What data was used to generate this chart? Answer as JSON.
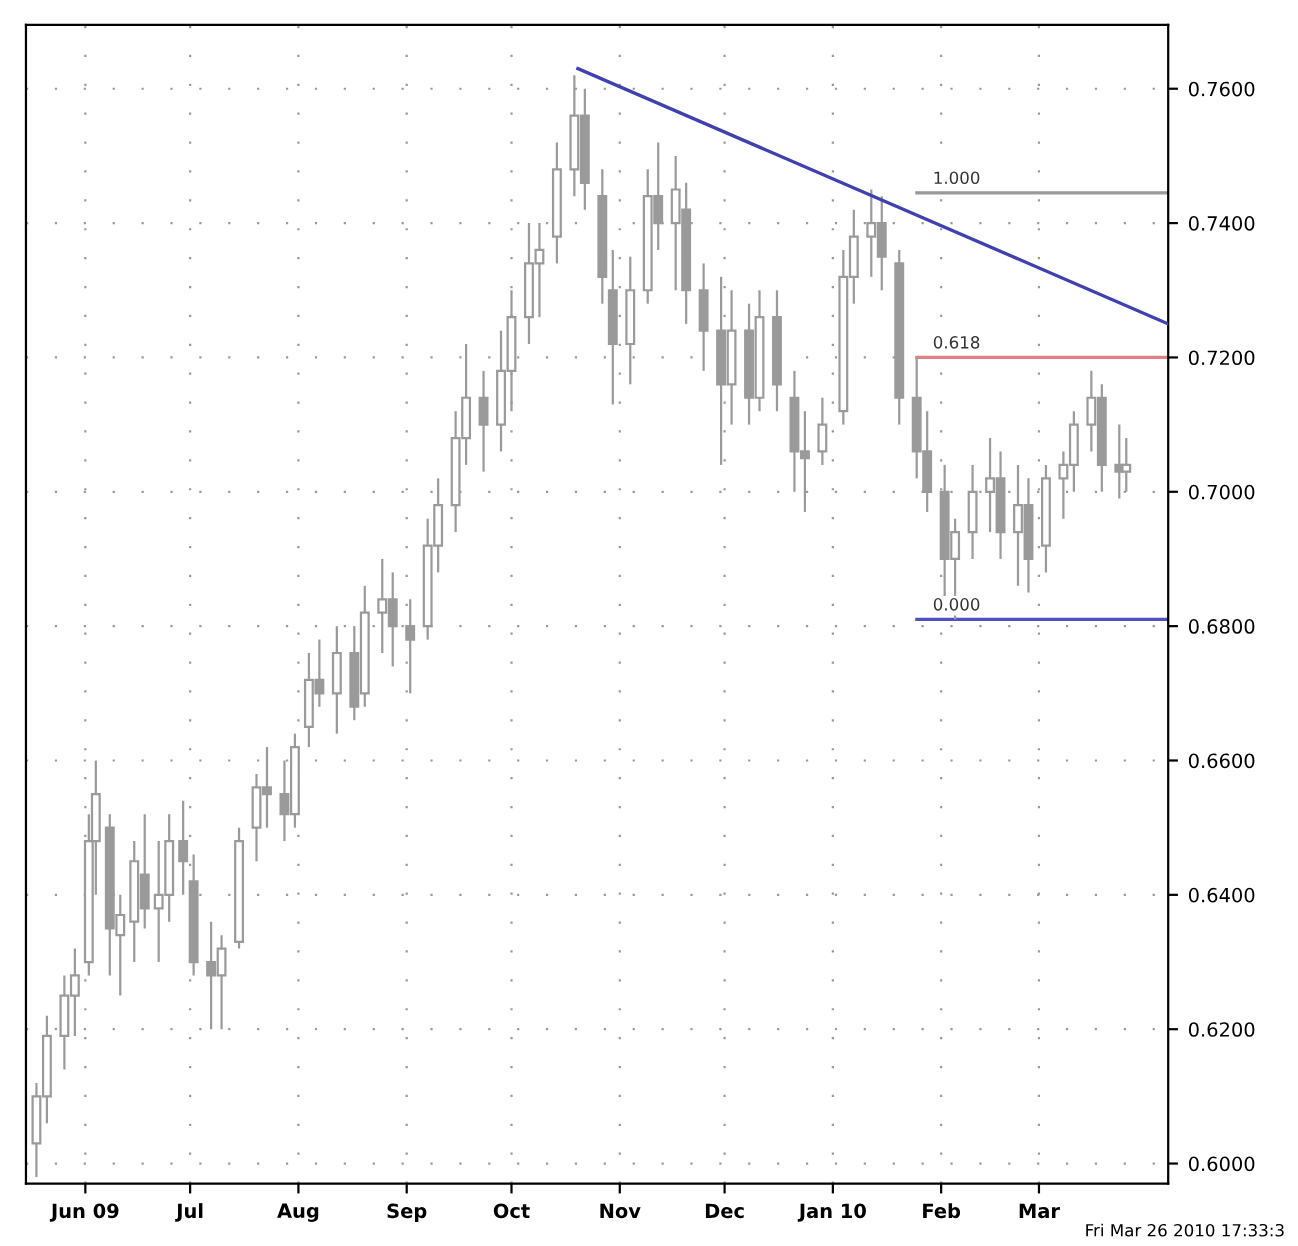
{
  "chart_data": {
    "type": "candlestick",
    "x": [
      "2009-05-18",
      "2009-05-21",
      "2009-05-26",
      "2009-05-29",
      "2009-06-02",
      "2009-06-04",
      "2009-06-08",
      "2009-06-11",
      "2009-06-15",
      "2009-06-18",
      "2009-06-22",
      "2009-06-25",
      "2009-06-29",
      "2009-07-02",
      "2009-07-07",
      "2009-07-10",
      "2009-07-15",
      "2009-07-20",
      "2009-07-23",
      "2009-07-28",
      "2009-07-31",
      "2009-08-04",
      "2009-08-07",
      "2009-08-12",
      "2009-08-17",
      "2009-08-20",
      "2009-08-25",
      "2009-08-28",
      "2009-09-02",
      "2009-09-07",
      "2009-09-10",
      "2009-09-15",
      "2009-09-18",
      "2009-09-23",
      "2009-09-28",
      "2009-10-01",
      "2009-10-06",
      "2009-10-09",
      "2009-10-14",
      "2009-10-19",
      "2009-10-22",
      "2009-10-27",
      "2009-10-30",
      "2009-11-04",
      "2009-11-09",
      "2009-11-12",
      "2009-11-17",
      "2009-11-20",
      "2009-11-25",
      "2009-11-30",
      "2009-12-03",
      "2009-12-08",
      "2009-12-11",
      "2009-12-16",
      "2009-12-21",
      "2009-12-24",
      "2009-12-29",
      "2010-01-04",
      "2010-01-07",
      "2010-01-12",
      "2010-01-15",
      "2010-01-20",
      "2010-01-25",
      "2010-01-28",
      "2010-02-02",
      "2010-02-05",
      "2010-02-10",
      "2010-02-15",
      "2010-02-18",
      "2010-02-23",
      "2010-02-26",
      "2010-03-03",
      "2010-03-08",
      "2010-03-11",
      "2010-03-16",
      "2010-03-19",
      "2010-03-24",
      "2010-03-26"
    ],
    "ohlc": [
      [
        0.603,
        0.612,
        0.598,
        0.61
      ],
      [
        0.61,
        0.622,
        0.606,
        0.619
      ],
      [
        0.619,
        0.628,
        0.614,
        0.625
      ],
      [
        0.625,
        0.632,
        0.619,
        0.628
      ],
      [
        0.63,
        0.652,
        0.628,
        0.648
      ],
      [
        0.648,
        0.66,
        0.64,
        0.655
      ],
      [
        0.65,
        0.652,
        0.628,
        0.635
      ],
      [
        0.634,
        0.64,
        0.625,
        0.637
      ],
      [
        0.636,
        0.648,
        0.63,
        0.645
      ],
      [
        0.643,
        0.652,
        0.635,
        0.638
      ],
      [
        0.638,
        0.648,
        0.63,
        0.64
      ],
      [
        0.64,
        0.652,
        0.636,
        0.648
      ],
      [
        0.648,
        0.654,
        0.64,
        0.645
      ],
      [
        0.642,
        0.646,
        0.628,
        0.63
      ],
      [
        0.63,
        0.636,
        0.62,
        0.628
      ],
      [
        0.628,
        0.634,
        0.62,
        0.632
      ],
      [
        0.633,
        0.65,
        0.632,
        0.648
      ],
      [
        0.65,
        0.658,
        0.645,
        0.656
      ],
      [
        0.656,
        0.662,
        0.65,
        0.655
      ],
      [
        0.655,
        0.66,
        0.648,
        0.652
      ],
      [
        0.652,
        0.664,
        0.65,
        0.662
      ],
      [
        0.665,
        0.676,
        0.662,
        0.672
      ],
      [
        0.672,
        0.678,
        0.668,
        0.67
      ],
      [
        0.67,
        0.68,
        0.664,
        0.676
      ],
      [
        0.676,
        0.68,
        0.666,
        0.668
      ],
      [
        0.67,
        0.686,
        0.668,
        0.682
      ],
      [
        0.682,
        0.69,
        0.676,
        0.684
      ],
      [
        0.684,
        0.688,
        0.674,
        0.68
      ],
      [
        0.68,
        0.684,
        0.67,
        0.678
      ],
      [
        0.68,
        0.696,
        0.678,
        0.692
      ],
      [
        0.692,
        0.702,
        0.688,
        0.698
      ],
      [
        0.698,
        0.712,
        0.694,
        0.708
      ],
      [
        0.708,
        0.722,
        0.704,
        0.714
      ],
      [
        0.714,
        0.718,
        0.703,
        0.71
      ],
      [
        0.71,
        0.724,
        0.706,
        0.718
      ],
      [
        0.718,
        0.73,
        0.712,
        0.726
      ],
      [
        0.726,
        0.74,
        0.722,
        0.734
      ],
      [
        0.734,
        0.74,
        0.726,
        0.736
      ],
      [
        0.738,
        0.752,
        0.734,
        0.748
      ],
      [
        0.748,
        0.762,
        0.744,
        0.756
      ],
      [
        0.756,
        0.76,
        0.742,
        0.746
      ],
      [
        0.744,
        0.748,
        0.728,
        0.732
      ],
      [
        0.73,
        0.736,
        0.713,
        0.722
      ],
      [
        0.722,
        0.735,
        0.716,
        0.73
      ],
      [
        0.73,
        0.748,
        0.728,
        0.744
      ],
      [
        0.744,
        0.752,
        0.736,
        0.74
      ],
      [
        0.74,
        0.75,
        0.73,
        0.745
      ],
      [
        0.742,
        0.746,
        0.725,
        0.73
      ],
      [
        0.73,
        0.734,
        0.718,
        0.724
      ],
      [
        0.724,
        0.732,
        0.704,
        0.716
      ],
      [
        0.716,
        0.73,
        0.71,
        0.724
      ],
      [
        0.724,
        0.728,
        0.71,
        0.714
      ],
      [
        0.714,
        0.73,
        0.712,
        0.726
      ],
      [
        0.726,
        0.73,
        0.712,
        0.716
      ],
      [
        0.714,
        0.718,
        0.7,
        0.706
      ],
      [
        0.706,
        0.712,
        0.697,
        0.705
      ],
      [
        0.706,
        0.714,
        0.704,
        0.71
      ],
      [
        0.712,
        0.736,
        0.71,
        0.732
      ],
      [
        0.732,
        0.742,
        0.728,
        0.738
      ],
      [
        0.738,
        0.745,
        0.732,
        0.74
      ],
      [
        0.74,
        0.744,
        0.73,
        0.735
      ],
      [
        0.734,
        0.736,
        0.71,
        0.714
      ],
      [
        0.714,
        0.72,
        0.702,
        0.706
      ],
      [
        0.706,
        0.712,
        0.697,
        0.7
      ],
      [
        0.7,
        0.704,
        0.682,
        0.69
      ],
      [
        0.69,
        0.696,
        0.681,
        0.694
      ],
      [
        0.694,
        0.704,
        0.69,
        0.7
      ],
      [
        0.7,
        0.708,
        0.694,
        0.702
      ],
      [
        0.702,
        0.706,
        0.69,
        0.694
      ],
      [
        0.694,
        0.704,
        0.686,
        0.698
      ],
      [
        0.698,
        0.702,
        0.685,
        0.69
      ],
      [
        0.692,
        0.704,
        0.688,
        0.702
      ],
      [
        0.702,
        0.706,
        0.696,
        0.704
      ],
      [
        0.704,
        0.712,
        0.7,
        0.71
      ],
      [
        0.71,
        0.718,
        0.706,
        0.714
      ],
      [
        0.714,
        0.716,
        0.7,
        0.704
      ],
      [
        0.704,
        0.71,
        0.699,
        0.703
      ],
      [
        0.703,
        0.708,
        0.7,
        0.704
      ]
    ],
    "color": "#9a9a9a",
    "series": [
      {
        "type": "line",
        "x": [
          "2009-10-20",
          "2010-04-07"
        ],
        "values": [
          0.763,
          0.725
        ],
        "color": "#4040b0"
      }
    ],
    "ref_lines": [
      {
        "axis": "y",
        "value": 0.7445,
        "color": "#999999"
      },
      {
        "axis": "y",
        "value": 0.72,
        "color": "#e08080"
      },
      {
        "axis": "y",
        "value": 0.681,
        "color": "#5050c0"
      }
    ],
    "xlim": [
      "2009-05-15",
      "2010-04-07"
    ],
    "xticks": [
      {
        "value": "2009-06-01",
        "label": "Jun 09"
      },
      {
        "value": "2009-07-01",
        "label": "Jul"
      },
      {
        "value": "2009-08-01",
        "label": "Aug"
      },
      {
        "value": "2009-09-01",
        "label": "Sep"
      },
      {
        "value": "2009-10-01",
        "label": "Oct"
      },
      {
        "value": "2009-11-01",
        "label": "Nov"
      },
      {
        "value": "2009-12-01",
        "label": "Dec"
      },
      {
        "value": "2010-01-01",
        "label": "Jan 10"
      },
      {
        "value": "2010-02-01",
        "label": "Feb"
      },
      {
        "value": "2010-03-01",
        "label": "Mar"
      }
    ],
    "ylim": [
      0.597,
      0.7695
    ],
    "yticks": [
      {
        "value": 0.6,
        "label": "0.6000"
      },
      {
        "value": 0.62,
        "label": "0.6200"
      },
      {
        "value": 0.64,
        "label": "0.6400"
      },
      {
        "value": 0.66,
        "label": "0.6600"
      },
      {
        "value": 0.68,
        "label": "0.6800"
      },
      {
        "value": 0.7,
        "label": "0.7000"
      },
      {
        "value": 0.72,
        "label": "0.7200"
      },
      {
        "value": 0.74,
        "label": "0.7400"
      },
      {
        "value": 0.76,
        "label": "0.7600"
      }
    ],
    "grid": true,
    "annotations": [
      {
        "text": "1.000",
        "x": "2010-01-28",
        "y": 0.7445
      },
      {
        "text": "0.618",
        "x": "2010-01-28",
        "y": 0.72
      },
      {
        "text": "0.000",
        "x": "2010-01-28",
        "y": 0.681
      },
      "Fri Mar 26 2010 17:33:3"
    ]
  }
}
